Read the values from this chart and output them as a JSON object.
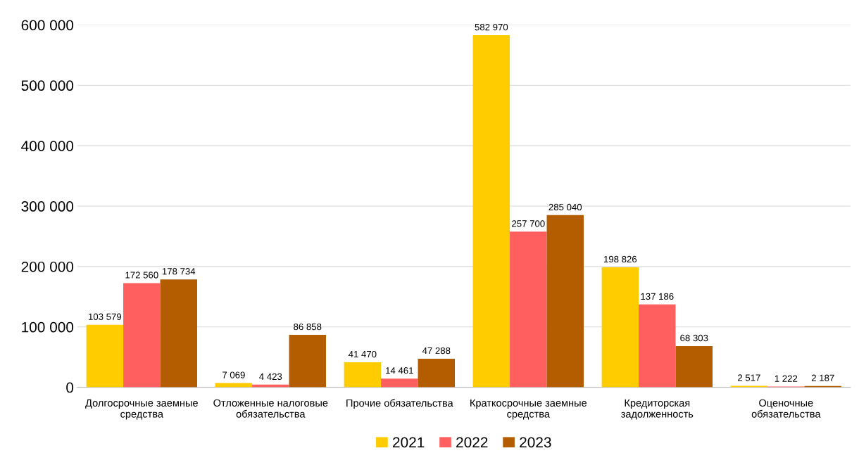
{
  "chart_data": {
    "type": "bar",
    "categories": [
      "Долгосрочные заемные\nсредства",
      "Отложенные налоговые\nобязательства",
      "Прочие обязательства",
      "Краткосрочные заемные\nсредства",
      "Кредиторская\nзадолженность",
      "Оценочные\nобязательства"
    ],
    "series": [
      {
        "name": "2021",
        "color": "#ffcc00",
        "values": [
          103579,
          7069,
          41470,
          582970,
          198826,
          2517
        ],
        "value_labels": [
          "103 579",
          "7 069",
          "41 470",
          "582 970",
          "198 826",
          "2 517"
        ]
      },
      {
        "name": "2022",
        "color": "#ff5f5f",
        "values": [
          172560,
          4423,
          14461,
          257700,
          137186,
          1222
        ],
        "value_labels": [
          "172 560",
          "4 423",
          "14 461",
          "257 700",
          "137 186",
          "1 222"
        ]
      },
      {
        "name": "2023",
        "color": "#b35c00",
        "values": [
          178734,
          86858,
          47288,
          285040,
          68303,
          2187
        ],
        "value_labels": [
          "178 734",
          "86 858",
          "47 288",
          "285 040",
          "68 303",
          "2 187"
        ]
      }
    ],
    "ylim": [
      0,
      600000
    ],
    "yticks": [
      {
        "value": 0,
        "label": "0"
      },
      {
        "value": 100000,
        "label": "100 000"
      },
      {
        "value": 200000,
        "label": "200 000"
      },
      {
        "value": 300000,
        "label": "300 000"
      },
      {
        "value": 400000,
        "label": "400 000"
      },
      {
        "value": 500000,
        "label": "500 000"
      },
      {
        "value": 600000,
        "label": "600 000"
      }
    ],
    "grid": "y",
    "legend": "bottom"
  }
}
